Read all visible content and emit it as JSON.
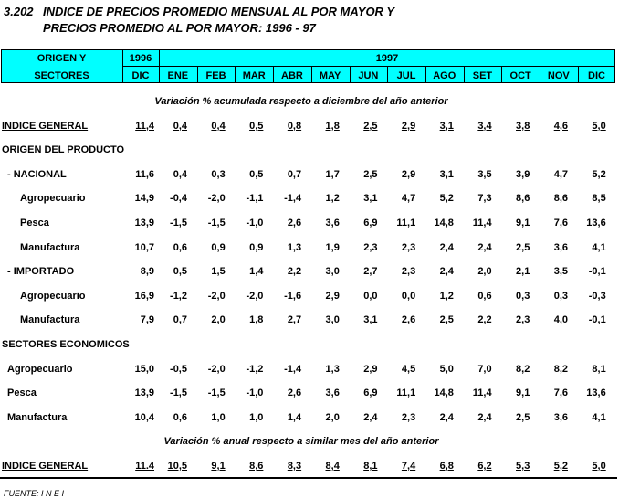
{
  "title": {
    "number": "3.202",
    "lines": [
      "INDICE DE PRECIOS PROMEDIO MENSUAL AL POR MAYOR Y",
      "PRECIOS PROMEDIO AL POR MAYOR: 1996 - 97"
    ]
  },
  "table": {
    "header": {
      "first": [
        "ORIGEN Y",
        "SECTORES"
      ],
      "years": [
        "1996",
        "1997"
      ],
      "months": [
        "DIC",
        "ENE",
        "FEB",
        "MAR",
        "ABR",
        "MAY",
        "JUN",
        "JUL",
        "AGO",
        "SET",
        "OCT",
        "NOV",
        "DIC"
      ]
    },
    "sections": [
      {
        "caption": "Variación % acumulada respecto a diciembre del año anterior",
        "rows": [
          {
            "label": "INDICE GENERAL",
            "values": [
              "11,4",
              "0,4",
              "0,4",
              "0,5",
              "0,8",
              "1,8",
              "2,5",
              "2,9",
              "3,1",
              "3,4",
              "3,8",
              "4,6",
              "5,0"
            ]
          },
          {
            "label": "ORIGEN DEL PRODUCTO",
            "children": [
              {
                "label": "- NACIONAL",
                "values": [
                  "11,6",
                  "0,4",
                  "0,3",
                  "0,5",
                  "0,7",
                  "1,7",
                  "2,5",
                  "2,9",
                  "3,1",
                  "3,5",
                  "3,9",
                  "4,7",
                  "5,2"
                ],
                "children": [
                  {
                    "label": "Agropecuario",
                    "values": [
                      "14,9",
                      "-0,4",
                      "-2,0",
                      "-1,1",
                      "-1,4",
                      "1,2",
                      "3,1",
                      "4,7",
                      "5,2",
                      "7,3",
                      "8,6",
                      "8,6",
                      "8,5"
                    ]
                  },
                  {
                    "label": "Pesca",
                    "values": [
                      "13,9",
                      "-1,5",
                      "-1,5",
                      "-1,0",
                      "2,6",
                      "3,6",
                      "6,9",
                      "11,1",
                      "14,8",
                      "11,4",
                      "9,1",
                      "7,6",
                      "13,6"
                    ]
                  },
                  {
                    "label": "Manufactura",
                    "values": [
                      "10,7",
                      "0,6",
                      "0,9",
                      "0,9",
                      "1,3",
                      "1,9",
                      "2,3",
                      "2,3",
                      "2,4",
                      "2,4",
                      "2,5",
                      "3,6",
                      "4,1"
                    ]
                  }
                ]
              },
              {
                "label": "- IMPORTADO",
                "values": [
                  "8,9",
                  "0,5",
                  "1,5",
                  "1,4",
                  "2,2",
                  "3,0",
                  "2,7",
                  "2,3",
                  "2,4",
                  "2,0",
                  "2,1",
                  "3,5",
                  "-0,1"
                ],
                "children": [
                  {
                    "label": "Agropecuario",
                    "values": [
                      "16,9",
                      "-1,2",
                      "-2,0",
                      "-2,0",
                      "-1,6",
                      "2,9",
                      "0,0",
                      "0,0",
                      "1,2",
                      "0,6",
                      "0,3",
                      "0,3",
                      "-0,3"
                    ]
                  },
                  {
                    "label": "Manufactura",
                    "values": [
                      "7,9",
                      "0,7",
                      "2,0",
                      "1,8",
                      "2,7",
                      "3,0",
                      "3,1",
                      "2,6",
                      "2,5",
                      "2,2",
                      "2,3",
                      "4,0",
                      "-0,1"
                    ]
                  }
                ]
              }
            ]
          },
          {
            "label": "SECTORES ECONOMICOS",
            "children": [
              {
                "label": "Agropecuario",
                "values": [
                  "15,0",
                  "-0,5",
                  "-2,0",
                  "-1,2",
                  "-1,4",
                  "1,3",
                  "2,9",
                  "4,5",
                  "5,0",
                  "7,0",
                  "8,2",
                  "8,2",
                  "8,1"
                ]
              },
              {
                "label": "Pesca",
                "values": [
                  "13,9",
                  "-1,5",
                  "-1,5",
                  "-1,0",
                  "2,6",
                  "3,6",
                  "6,9",
                  "11,1",
                  "14,8",
                  "11,4",
                  "9,1",
                  "7,6",
                  "13,6"
                ]
              },
              {
                "label": "Manufactura",
                "values": [
                  "10,4",
                  "0,6",
                  "1,0",
                  "1,0",
                  "1,4",
                  "2,0",
                  "2,4",
                  "2,3",
                  "2,4",
                  "2,4",
                  "2,5",
                  "3,6",
                  "4,1"
                ]
              }
            ]
          }
        ]
      },
      {
        "caption": "Variación % anual respecto a similar mes del año anterior",
        "rows": [
          {
            "label": "INDICE GENERAL",
            "values": [
              "11.4",
              "10,5",
              "9,1",
              "8,6",
              "8,3",
              "8,4",
              "8,1",
              "7,4",
              "6,8",
              "6,2",
              "5,3",
              "5,2",
              "5,0"
            ]
          }
        ]
      }
    ]
  },
  "source": "FUENTE: I N E I"
}
